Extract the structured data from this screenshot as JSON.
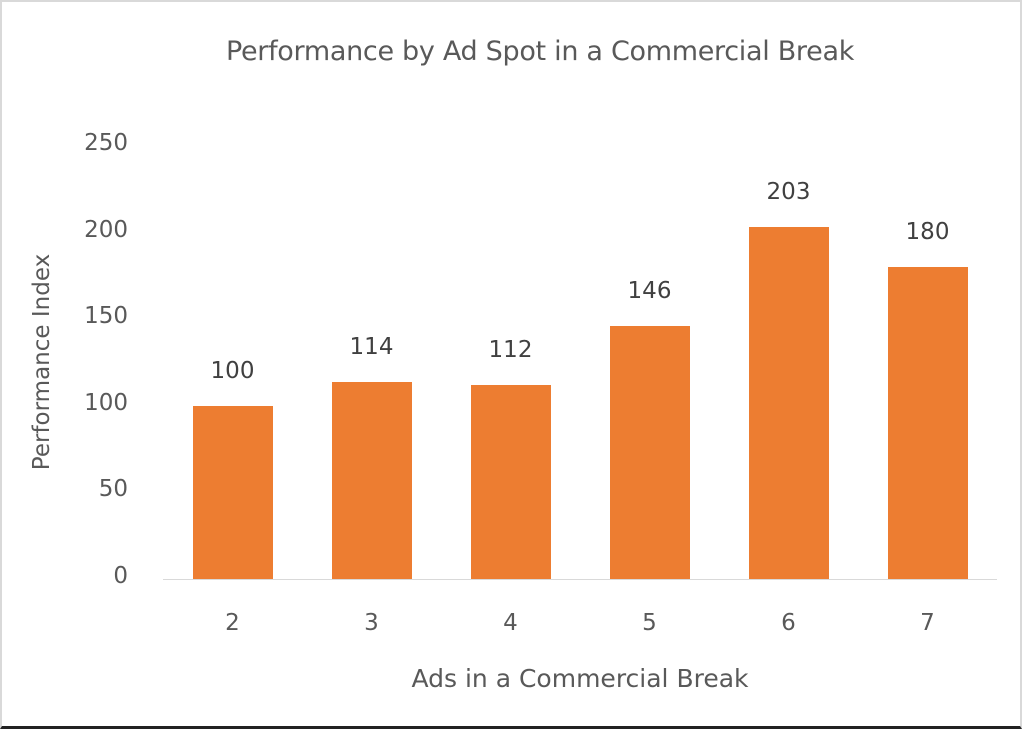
{
  "chart_data": {
    "type": "bar",
    "title": "Performance by Ad Spot in a Commercial Break",
    "xlabel": "Ads in a Commercial Break",
    "ylabel": "Performance Index",
    "categories": [
      "2",
      "3",
      "4",
      "5",
      "6",
      "7"
    ],
    "values": [
      100,
      114,
      112,
      146,
      203,
      180
    ],
    "data_labels": [
      "100",
      "114",
      "112",
      "146",
      "203",
      "180"
    ],
    "yticks": [
      "0",
      "50",
      "100",
      "150",
      "200",
      "250"
    ],
    "ylim": [
      0,
      250
    ],
    "grid": false,
    "legend": "none",
    "bar_color": "#ed7d31"
  }
}
